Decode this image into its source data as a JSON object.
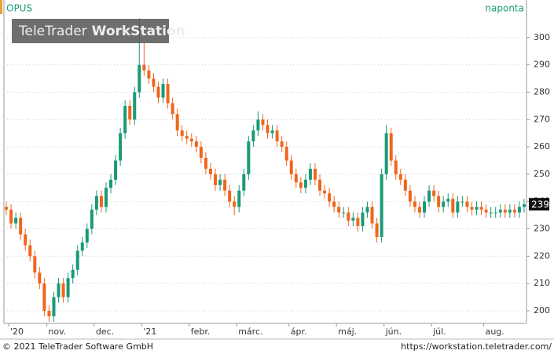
{
  "chart_data": {
    "type": "candlestick",
    "title": "OPUS",
    "interval": "naponta",
    "watermark": {
      "brand": "TeleTrader",
      "product": "WorkStation"
    },
    "categories": [
      null,
      "'20",
      null,
      null,
      null,
      null,
      null,
      null,
      null,
      "nov.",
      null,
      null,
      null,
      null,
      null,
      null,
      null,
      null,
      null,
      "dec.",
      null,
      null,
      null,
      null,
      null,
      null,
      null,
      null,
      null,
      "'21",
      null,
      null,
      null,
      null,
      null,
      null,
      null,
      null,
      null,
      "febr.",
      null,
      null,
      null,
      null,
      null,
      null,
      null,
      null,
      null,
      "márc.",
      null,
      null,
      null,
      null,
      null,
      null,
      null,
      null,
      null,
      null,
      "ápr.",
      null,
      null,
      null,
      null,
      null,
      null,
      null,
      null,
      null,
      "máj.",
      null,
      null,
      null,
      null,
      null,
      null,
      null,
      null,
      null,
      "jún.",
      null,
      null,
      null,
      null,
      null,
      null,
      null,
      null,
      null,
      "júl.",
      null,
      null,
      null,
      null,
      null,
      null,
      null,
      null,
      null,
      null,
      "aug.",
      null,
      null,
      null,
      null,
      null,
      null,
      null,
      null
    ],
    "open": [
      238,
      237,
      232,
      234,
      228,
      224,
      220,
      214,
      210,
      200,
      198,
      205,
      210,
      205,
      212,
      215,
      222,
      225,
      230,
      237,
      242,
      238,
      245,
      248,
      255,
      265,
      275,
      270,
      280,
      290,
      288,
      285,
      282,
      278,
      283,
      276,
      272,
      266,
      264,
      263,
      262,
      260,
      256,
      252,
      250,
      246,
      248,
      244,
      240,
      238,
      244,
      250,
      262,
      266,
      270,
      268,
      265,
      266,
      262,
      260,
      255,
      250,
      247,
      245,
      248,
      252,
      248,
      244,
      243,
      240,
      238,
      236,
      236,
      233,
      234,
      231,
      236,
      238,
      232,
      227,
      250,
      265,
      255,
      250,
      248,
      244,
      240,
      238,
      236,
      240,
      244,
      242,
      238,
      240,
      241,
      236,
      240,
      240,
      238,
      237,
      238,
      237,
      236,
      236,
      236,
      237,
      236,
      237,
      236,
      238
    ],
    "high": [
      240,
      239,
      236,
      236,
      230,
      226,
      222,
      216,
      212,
      202,
      207,
      212,
      212,
      214,
      217,
      224,
      227,
      232,
      239,
      244,
      244,
      247,
      250,
      257,
      267,
      277,
      277,
      282,
      307,
      298,
      290,
      287,
      284,
      285,
      285,
      278,
      274,
      268,
      266,
      265,
      264,
      262,
      258,
      254,
      252,
      250,
      250,
      246,
      242,
      246,
      252,
      264,
      268,
      273,
      272,
      270,
      268,
      268,
      264,
      262,
      257,
      252,
      249,
      250,
      254,
      254,
      250,
      246,
      245,
      242,
      240,
      238,
      238,
      236,
      236,
      238,
      240,
      240,
      234,
      252,
      268,
      267,
      257,
      252,
      250,
      246,
      242,
      240,
      242,
      246,
      246,
      244,
      242,
      243,
      243,
      242,
      242,
      242,
      240,
      240,
      240,
      239,
      238,
      238,
      239,
      239,
      239,
      239,
      240,
      241
    ],
    "low": [
      235,
      230,
      230,
      226,
      222,
      218,
      212,
      208,
      198,
      196,
      196,
      203,
      203,
      203,
      210,
      213,
      220,
      223,
      228,
      235,
      236,
      236,
      243,
      246,
      253,
      263,
      268,
      268,
      278,
      286,
      283,
      280,
      276,
      276,
      274,
      270,
      264,
      262,
      261,
      260,
      258,
      254,
      250,
      248,
      244,
      244,
      242,
      238,
      235,
      236,
      242,
      248,
      260,
      264,
      266,
      263,
      263,
      260,
      258,
      253,
      248,
      245,
      243,
      243,
      246,
      246,
      242,
      241,
      238,
      236,
      234,
      234,
      231,
      231,
      229,
      229,
      234,
      230,
      225,
      225,
      248,
      253,
      248,
      246,
      242,
      238,
      236,
      234,
      234,
      238,
      240,
      236,
      236,
      238,
      234,
      234,
      238,
      236,
      235,
      235,
      235,
      234,
      234,
      234,
      234,
      234,
      234,
      234,
      234,
      236
    ],
    "close": [
      237,
      232,
      234,
      228,
      224,
      220,
      214,
      210,
      200,
      198,
      205,
      210,
      205,
      212,
      215,
      222,
      225,
      230,
      237,
      242,
      238,
      245,
      248,
      255,
      265,
      275,
      270,
      280,
      290,
      288,
      285,
      282,
      278,
      283,
      276,
      272,
      266,
      264,
      263,
      262,
      260,
      256,
      252,
      250,
      246,
      248,
      244,
      240,
      238,
      244,
      250,
      262,
      266,
      270,
      268,
      265,
      266,
      262,
      260,
      255,
      250,
      247,
      245,
      248,
      252,
      248,
      244,
      243,
      240,
      238,
      236,
      236,
      233,
      234,
      231,
      236,
      238,
      232,
      227,
      250,
      265,
      255,
      250,
      248,
      244,
      240,
      238,
      236,
      240,
      244,
      242,
      238,
      240,
      241,
      236,
      240,
      240,
      238,
      237,
      238,
      237,
      236,
      236,
      236,
      237,
      236,
      237,
      236,
      238,
      239
    ],
    "up_color": "#1a9a78",
    "down_color": "#f0661e",
    "ylim": [
      195.4,
      308
    ],
    "yticks": [
      200,
      210,
      220,
      230,
      240,
      250,
      260,
      270,
      280,
      290,
      300
    ],
    "grid": true
  },
  "footer": {
    "copyright": "© 2021 TeleTrader Software GmbH",
    "url": "https://workstation.teletrader.com/"
  }
}
